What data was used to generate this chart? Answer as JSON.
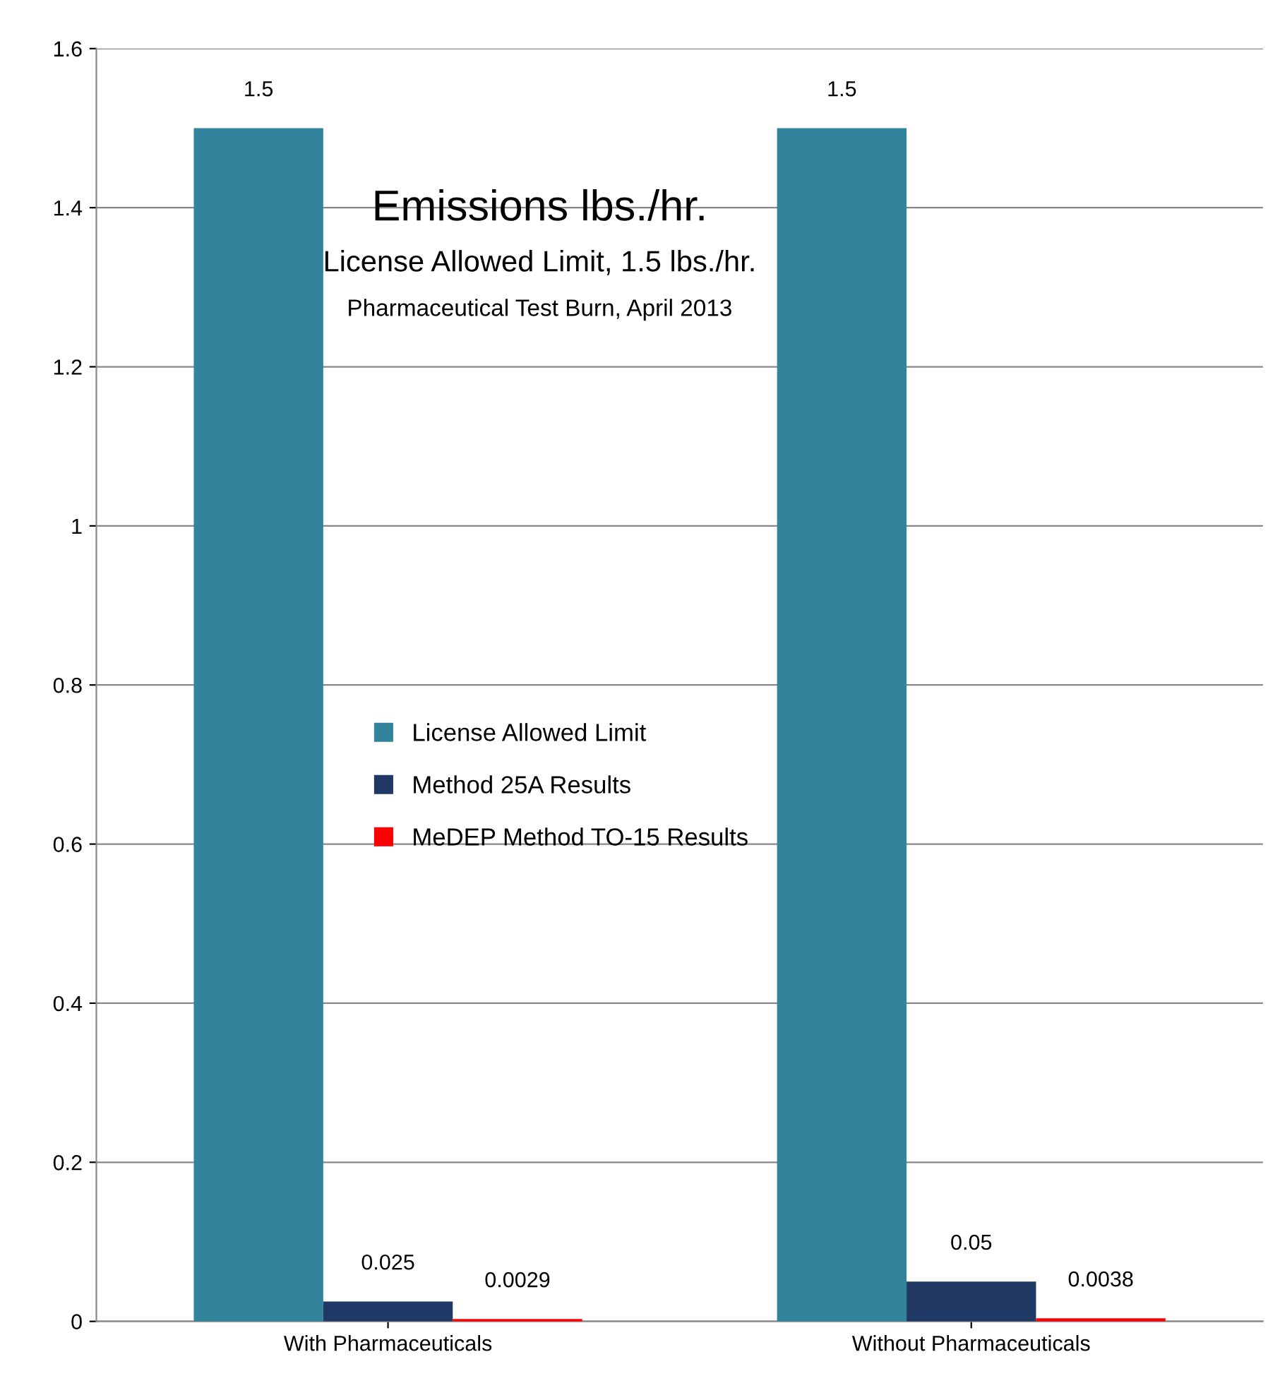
{
  "chart_data": {
    "type": "bar",
    "title": "Emissions lbs./hr.",
    "subtitle": "License Allowed Limit, 1.5 lbs./hr.",
    "annotations": [
      "Pharmaceutical Test Burn, April 2013"
    ],
    "categories": [
      "With Pharmaceuticals",
      "Without Pharmaceuticals"
    ],
    "series": [
      {
        "name": "License Allowed Limit",
        "color": "#31849b",
        "values": [
          1.5,
          1.5
        ]
      },
      {
        "name": "Method 25A Results",
        "color": "#1f3864",
        "values": [
          0.025,
          0.05
        ]
      },
      {
        "name": "MeDEP Method TO-15 Results",
        "color": "#ff0000",
        "values": [
          0.0029,
          0.0038
        ]
      }
    ],
    "ylim": [
      0,
      1.6
    ],
    "yticks": [
      0,
      0.2,
      0.4,
      0.6,
      0.8,
      1,
      1.2,
      1.4,
      1.6
    ],
    "grid": "y",
    "legend": "center left",
    "data_labels": true
  }
}
